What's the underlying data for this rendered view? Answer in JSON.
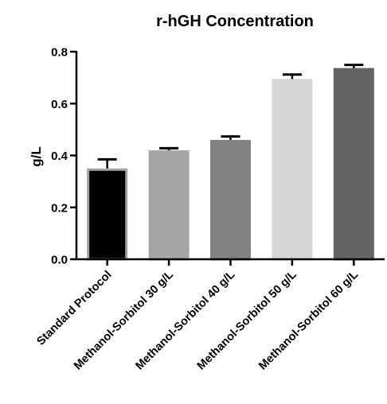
{
  "chart_data": {
    "type": "bar",
    "title": "r-hGH Concentration",
    "xlabel": "",
    "ylabel": "g/L",
    "ylim": [
      0,
      0.8
    ],
    "yticks": [
      "0.0",
      "0.2",
      "0.4",
      "0.6",
      "0.8"
    ],
    "grid": false,
    "categories": [
      "Standard Protocol",
      "Methanol-Sorbitol 30 g/L",
      "Methanol-Sorbitol 40 g/L",
      "Methanol-Sorbitol 50 g/L",
      "Methanol-Sorbitol 60 g/L"
    ],
    "values": [
      0.35,
      0.42,
      0.46,
      0.695,
      0.737
    ],
    "errors": [
      0.035,
      0.008,
      0.013,
      0.017,
      0.012
    ],
    "colors": [
      "#000000",
      "#a6a6a8",
      "#828282",
      "#d6d6d6",
      "#636363"
    ],
    "edge_colors": [
      "#a3a3a3",
      "#a6a6a8",
      "#828282",
      "#d6d6d6",
      "#636363"
    ]
  }
}
